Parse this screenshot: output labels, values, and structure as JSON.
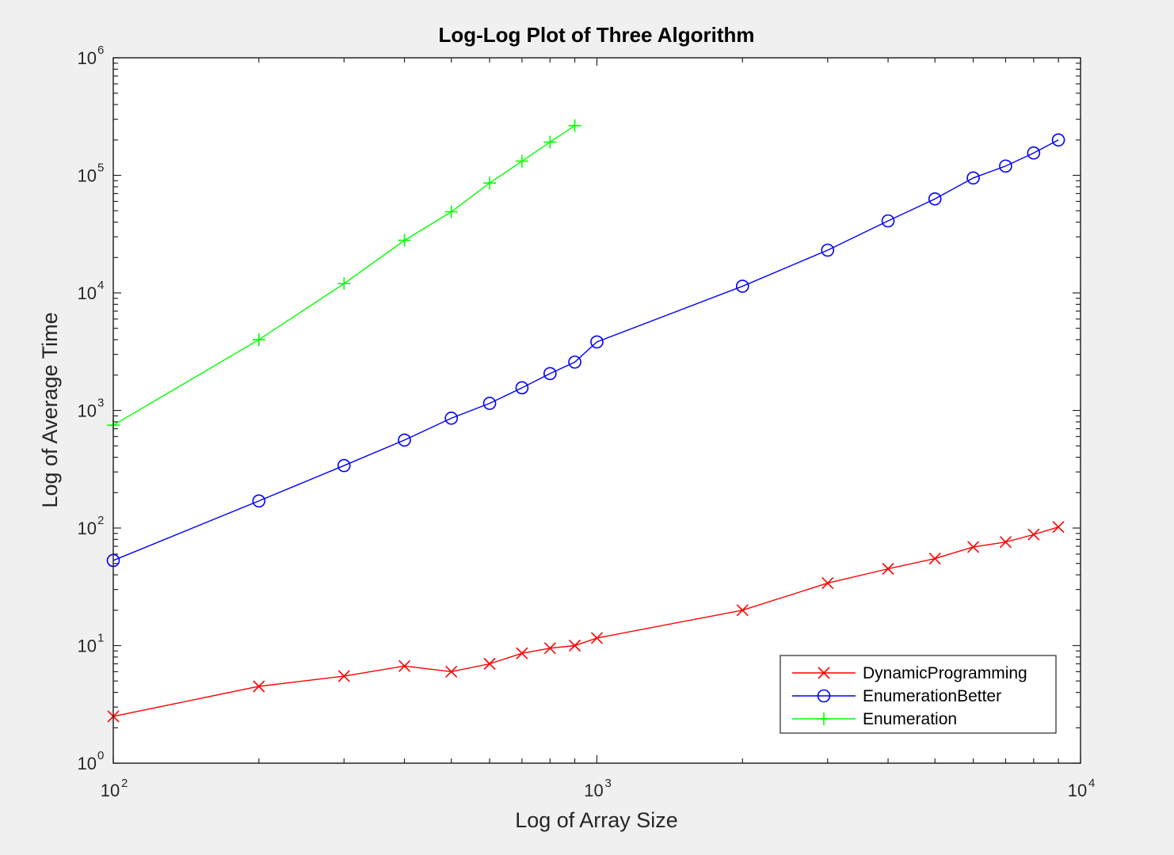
{
  "chart_data": {
    "type": "line",
    "title": "Log-Log Plot of Three Algorithm",
    "xlabel": "Log of Array Size",
    "ylabel": "Log of Average Time",
    "xscale": "log",
    "yscale": "log",
    "xlim": [
      100,
      10000
    ],
    "ylim": [
      1,
      1000000
    ],
    "xticks": [
      {
        "base": "10",
        "exp": "2",
        "value": 100
      },
      {
        "base": "10",
        "exp": "3",
        "value": 1000
      },
      {
        "base": "10",
        "exp": "4",
        "value": 10000
      }
    ],
    "yticks": [
      {
        "base": "10",
        "exp": "0",
        "value": 1
      },
      {
        "base": "10",
        "exp": "1",
        "value": 10
      },
      {
        "base": "10",
        "exp": "2",
        "value": 100
      },
      {
        "base": "10",
        "exp": "3",
        "value": 1000
      },
      {
        "base": "10",
        "exp": "4",
        "value": 10000
      },
      {
        "base": "10",
        "exp": "5",
        "value": 100000
      },
      {
        "base": "10",
        "exp": "6",
        "value": 1000000
      }
    ],
    "grid": false,
    "legend_position": "bottom-right",
    "series": [
      {
        "name": "DynamicProgramming",
        "color": "#ff0000",
        "marker": "x",
        "x": [
          100,
          200,
          300,
          400,
          500,
          600,
          700,
          800,
          900,
          1000,
          2000,
          3000,
          4000,
          5000,
          6000,
          7000,
          8000,
          9000
        ],
        "y": [
          2.5,
          4.5,
          5.5,
          6.7,
          6.0,
          7.0,
          8.6,
          9.5,
          10.0,
          11.6,
          20,
          34,
          45,
          55,
          69,
          76,
          88,
          102
        ]
      },
      {
        "name": "EnumerationBetter",
        "color": "#0000ff",
        "marker": "o",
        "x": [
          100,
          200,
          300,
          400,
          500,
          600,
          700,
          800,
          900,
          1000,
          2000,
          3000,
          4000,
          5000,
          6000,
          7000,
          8000,
          9000
        ],
        "y": [
          53,
          170,
          340,
          560,
          860,
          1150,
          1560,
          2060,
          2580,
          3830,
          11400,
          23100,
          41000,
          63000,
          95000,
          120000,
          155000,
          200000
        ]
      },
      {
        "name": "Enumeration",
        "color": "#00ff00",
        "marker": "+",
        "x": [
          100,
          200,
          300,
          400,
          500,
          600,
          700,
          800,
          900
        ],
        "y": [
          750,
          4000,
          12000,
          28000,
          49000,
          86000,
          132000,
          192000,
          265000
        ]
      }
    ]
  }
}
